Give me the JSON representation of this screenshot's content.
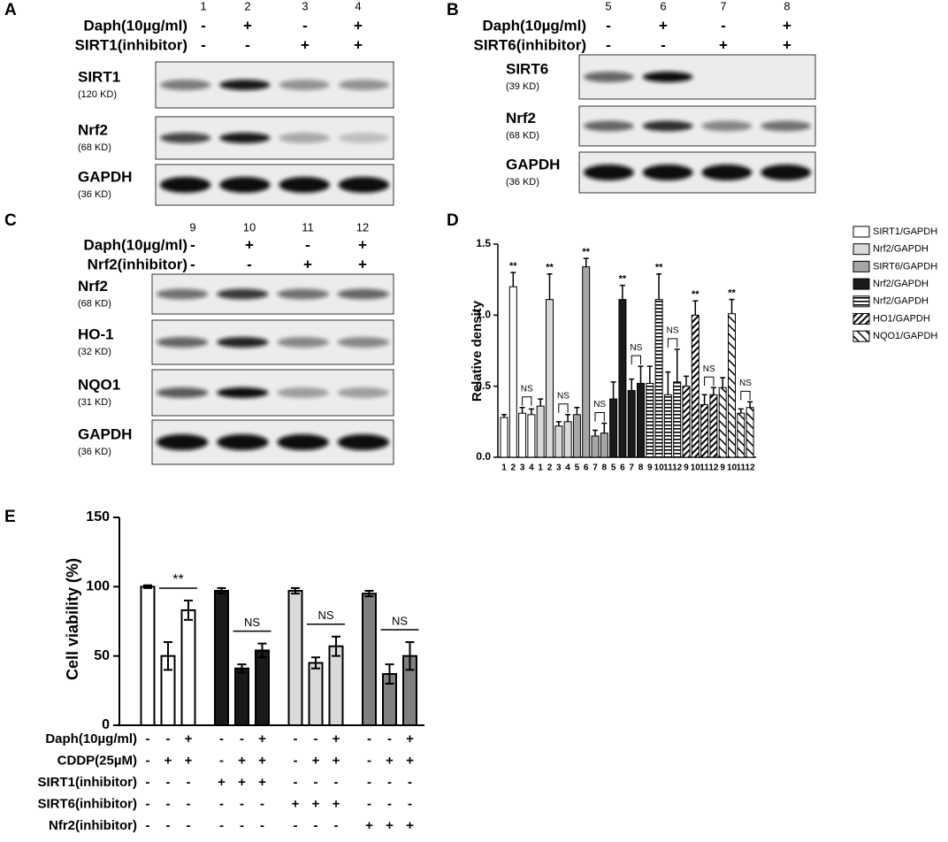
{
  "panels": [
    {
      "label": "A",
      "lanes": [
        "1",
        "2",
        "3",
        "4"
      ],
      "treatments": [
        {
          "label": "Daph(10µg/ml)",
          "signs": [
            "-",
            "+",
            "-",
            "+"
          ]
        },
        {
          "label": "SIRT1(inhibitor)",
          "signs": [
            "-",
            "-",
            "+",
            "+"
          ]
        }
      ],
      "blots": [
        {
          "name": "SIRT1",
          "size": "(120 KD)"
        },
        {
          "name": "Nrf2",
          "size": "(68 KD)"
        },
        {
          "name": "GAPDH",
          "size": "(36 KD)"
        }
      ]
    },
    {
      "label": "B",
      "lanes": [
        "5",
        "6",
        "7",
        "8"
      ],
      "treatments": [
        {
          "label": "Daph(10µg/ml)",
          "signs": [
            "-",
            "+",
            "-",
            "+"
          ]
        },
        {
          "label": "SIRT6(inhibitor)",
          "signs": [
            "-",
            "-",
            "+",
            "+"
          ]
        }
      ],
      "blots": [
        {
          "name": "SIRT6",
          "size": "(39 KD)"
        },
        {
          "name": "Nrf2",
          "size": "(68 KD)"
        },
        {
          "name": "GAPDH",
          "size": "(36 KD)"
        }
      ]
    },
    {
      "label": "C",
      "lanes": [
        "9",
        "10",
        "11",
        "12"
      ],
      "treatments": [
        {
          "label": "Daph(10µg/ml)",
          "signs": [
            "-",
            "+",
            "-",
            "+"
          ]
        },
        {
          "label": "Nrf2(inhibitor)",
          "signs": [
            "-",
            "-",
            "+",
            "+"
          ]
        }
      ],
      "blots": [
        {
          "name": "Nrf2",
          "size": "(68 KD)"
        },
        {
          "name": "HO-1",
          "size": "(32 KD)"
        },
        {
          "name": "NQO1",
          "size": "(31 KD)"
        },
        {
          "name": "GAPDH",
          "size": "(36 KD)"
        }
      ]
    }
  ],
  "chart_data": [
    {
      "panel": "D",
      "type": "bar",
      "y_label": "Relative density",
      "ylim": [
        0,
        1.5
      ],
      "yticks": [
        {
          "value": 0,
          "label": "0.0"
        },
        0.5,
        {
          "value": 1,
          "label": "1.0"
        },
        1.5
      ],
      "categories": [
        "1",
        "2",
        "3",
        "4",
        "1",
        "2",
        "3",
        "4",
        "5",
        "6",
        "7",
        "8",
        "5",
        "6",
        "7",
        "8",
        "9",
        "10",
        "11",
        "12",
        "9",
        "10",
        "11",
        "12",
        "9",
        "10",
        "11",
        "12"
      ],
      "series": [
        {
          "name": "SIRT1/GAPDH",
          "color": "#ffffff",
          "pattern": null,
          "annotations": [
            "**",
            "NS"
          ],
          "values": [
            0.28,
            1.2,
            0.31,
            0.3,
            null,
            null,
            null,
            null,
            null,
            null,
            null,
            null,
            null,
            null,
            null,
            null,
            null,
            null,
            null,
            null,
            null,
            null,
            null,
            null,
            null,
            null,
            null,
            null
          ],
          "errors": [
            0.02,
            0.1,
            0.04,
            0.04,
            null,
            null,
            null,
            null,
            null,
            null,
            null,
            null,
            null,
            null,
            null,
            null,
            null,
            null,
            null,
            null,
            null,
            null,
            null,
            null,
            null,
            null,
            null,
            null
          ]
        },
        {
          "name": "Nrf2/GAPDH",
          "color": "#d9d9d9",
          "pattern": null,
          "annotations": [
            "**",
            "NS"
          ],
          "values": [
            null,
            null,
            null,
            null,
            0.36,
            1.11,
            0.22,
            0.25,
            null,
            null,
            null,
            null,
            null,
            null,
            null,
            null,
            null,
            null,
            null,
            null,
            null,
            null,
            null,
            null,
            null,
            null,
            null,
            null
          ],
          "errors": [
            null,
            null,
            null,
            null,
            0.05,
            0.18,
            0.03,
            0.05,
            null,
            null,
            null,
            null,
            null,
            null,
            null,
            null,
            null,
            null,
            null,
            null,
            null,
            null,
            null,
            null,
            null,
            null,
            null,
            null
          ]
        },
        {
          "name": "SIRT6/GAPDH",
          "color": "#a6a6a6",
          "pattern": null,
          "annotations": [
            "**",
            "NS"
          ],
          "values": [
            null,
            null,
            null,
            null,
            null,
            null,
            null,
            null,
            0.3,
            1.34,
            0.15,
            0.17,
            null,
            null,
            null,
            null,
            null,
            null,
            null,
            null,
            null,
            null,
            null,
            null,
            null,
            null,
            null,
            null
          ],
          "errors": [
            null,
            null,
            null,
            null,
            null,
            null,
            null,
            null,
            0.05,
            0.06,
            0.04,
            0.07,
            null,
            null,
            null,
            null,
            null,
            null,
            null,
            null,
            null,
            null,
            null,
            null,
            null,
            null,
            null,
            null
          ]
        },
        {
          "name": "Nrf2/GAPDH",
          "color": "#1a1a1a",
          "pattern": null,
          "annotations": [
            "**",
            "NS"
          ],
          "values": [
            null,
            null,
            null,
            null,
            null,
            null,
            null,
            null,
            null,
            null,
            null,
            null,
            0.41,
            1.11,
            0.47,
            0.52,
            null,
            null,
            null,
            null,
            null,
            null,
            null,
            null,
            null,
            null,
            null,
            null
          ],
          "errors": [
            null,
            null,
            null,
            null,
            null,
            null,
            null,
            null,
            null,
            null,
            null,
            null,
            0.12,
            0.1,
            0.08,
            0.12,
            null,
            null,
            null,
            null,
            null,
            null,
            null,
            null,
            null,
            null,
            null,
            null
          ]
        },
        {
          "name": "Nrf2/GAPDH",
          "color": "#000000",
          "pattern": "hstripe",
          "annotations": [
            "**",
            "NS"
          ],
          "values": [
            null,
            null,
            null,
            null,
            null,
            null,
            null,
            null,
            null,
            null,
            null,
            null,
            null,
            null,
            null,
            null,
            0.52,
            1.11,
            0.44,
            0.53,
            null,
            null,
            null,
            null,
            null,
            null,
            null,
            null
          ],
          "errors": [
            null,
            null,
            null,
            null,
            null,
            null,
            null,
            null,
            null,
            null,
            null,
            null,
            null,
            null,
            null,
            null,
            0.12,
            0.18,
            0.16,
            0.23,
            null,
            null,
            null,
            null,
            null,
            null,
            null,
            null
          ]
        },
        {
          "name": "HO1/GAPDH",
          "color": "#000000",
          "pattern": "diag",
          "annotations": [
            "**",
            "NS"
          ],
          "values": [
            null,
            null,
            null,
            null,
            null,
            null,
            null,
            null,
            null,
            null,
            null,
            null,
            null,
            null,
            null,
            null,
            null,
            null,
            null,
            null,
            0.5,
            1.0,
            0.37,
            0.44,
            null,
            null,
            null,
            null
          ],
          "errors": [
            null,
            null,
            null,
            null,
            null,
            null,
            null,
            null,
            null,
            null,
            null,
            null,
            null,
            null,
            null,
            null,
            null,
            null,
            null,
            null,
            0.07,
            0.1,
            0.07,
            0.05,
            null,
            null,
            null,
            null
          ]
        },
        {
          "name": "NQO1/GAPDH",
          "color": "#000000",
          "pattern": "backdiag",
          "annotations": [
            "**",
            "NS"
          ],
          "values": [
            null,
            null,
            null,
            null,
            null,
            null,
            null,
            null,
            null,
            null,
            null,
            null,
            null,
            null,
            null,
            null,
            null,
            null,
            null,
            null,
            null,
            null,
            null,
            null,
            0.49,
            1.01,
            0.31,
            0.35
          ],
          "errors": [
            null,
            null,
            null,
            null,
            null,
            null,
            null,
            null,
            null,
            null,
            null,
            null,
            null,
            null,
            null,
            null,
            null,
            null,
            null,
            null,
            null,
            null,
            null,
            null,
            0.07,
            0.1,
            0.03,
            0.04
          ]
        }
      ]
    },
    {
      "panel": "E",
      "type": "bar",
      "y_label": "Cell viability (%)",
      "ylim": [
        0,
        150
      ],
      "yticks": [
        0,
        50,
        100,
        150
      ],
      "categories": [
        null,
        null,
        null,
        null,
        null,
        null,
        null,
        null,
        null,
        null,
        null,
        null
      ],
      "group_colors": [
        "#ffffff",
        "#1a1a1a",
        "#d9d9d9",
        "#808080"
      ],
      "annotations": [
        "**",
        "NS",
        "NS",
        "NS"
      ],
      "values": [
        100,
        50,
        83,
        97,
        41,
        54,
        97,
        45,
        57,
        95,
        37,
        50
      ],
      "errors": [
        1,
        10,
        7,
        2,
        3,
        5,
        2,
        4,
        7,
        2,
        7,
        10
      ],
      "treatments": [
        {
          "label": "Daph(10µg/ml)",
          "signs": [
            "-",
            "-",
            "+",
            "-",
            "-",
            "+",
            "-",
            "-",
            "+",
            "-",
            "-",
            "+"
          ]
        },
        {
          "label": "CDDP(25µM)",
          "signs": [
            "-",
            "+",
            "+",
            "-",
            "+",
            "+",
            "-",
            "+",
            "+",
            "-",
            "+",
            "+"
          ]
        },
        {
          "label": "SIRT1(inhibitor)",
          "signs": [
            "-",
            "-",
            "-",
            "+",
            "+",
            "+",
            "-",
            "-",
            "-",
            "-",
            "-",
            "-"
          ]
        },
        {
          "label": "SIRT6(inhibitor)",
          "signs": [
            "-",
            "-",
            "-",
            "-",
            "-",
            "-",
            "+",
            "+",
            "+",
            "-",
            "-",
            "-"
          ]
        },
        {
          "label": "Nfr2(inhibitor)",
          "signs": [
            "-",
            "-",
            "-",
            "-",
            "-",
            "-",
            "-",
            "-",
            "-",
            "+",
            "+",
            "+"
          ]
        }
      ]
    }
  ]
}
